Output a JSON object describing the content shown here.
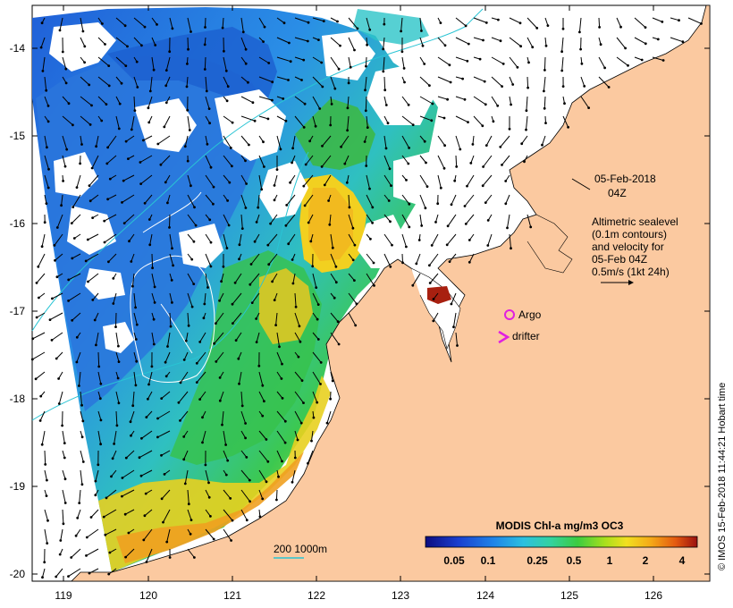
{
  "axes": {
    "x_ticks": [
      "119",
      "120",
      "121",
      "122",
      "123",
      "124",
      "125",
      "126"
    ],
    "y_ticks": [
      "-14",
      "-15",
      "-16",
      "-17",
      "-18",
      "-19",
      "-20"
    ]
  },
  "timestamp": {
    "date": "05-Feb-2018",
    "time": "04Z"
  },
  "legend": {
    "line1": "Altimetric sealevel",
    "line2": "(0.1m contours)",
    "line3": "and velocity for",
    "line4": "05-Feb 04Z",
    "line5": "0.5m/s (1kt 24h)"
  },
  "markers": {
    "argo_label": "Argo",
    "drifter_label": "drifter",
    "argo_color": "#e020e0",
    "drifter_color": "#e020e0"
  },
  "bathymetry": {
    "label": "200  1000m",
    "color": "#29c4d4"
  },
  "colorbar": {
    "title": "MODIS Chl-a mg/m3 OC3",
    "labels": [
      "0.05",
      "0.1",
      "0.25",
      "0.5",
      "1",
      "2",
      "4"
    ],
    "colors": [
      "#101090",
      "#1a3fcf",
      "#1f7fe6",
      "#2bb7e0",
      "#2fd0b0",
      "#3bd04a",
      "#9ee020",
      "#f2e020",
      "#f5b020",
      "#ee7010",
      "#d03010",
      "#a01010"
    ]
  },
  "credit": "© IMOS 15-Feb-2018 11:44:21 Hobart time",
  "colors": {
    "land": "#fbc9a0",
    "background": "#ffffff"
  }
}
